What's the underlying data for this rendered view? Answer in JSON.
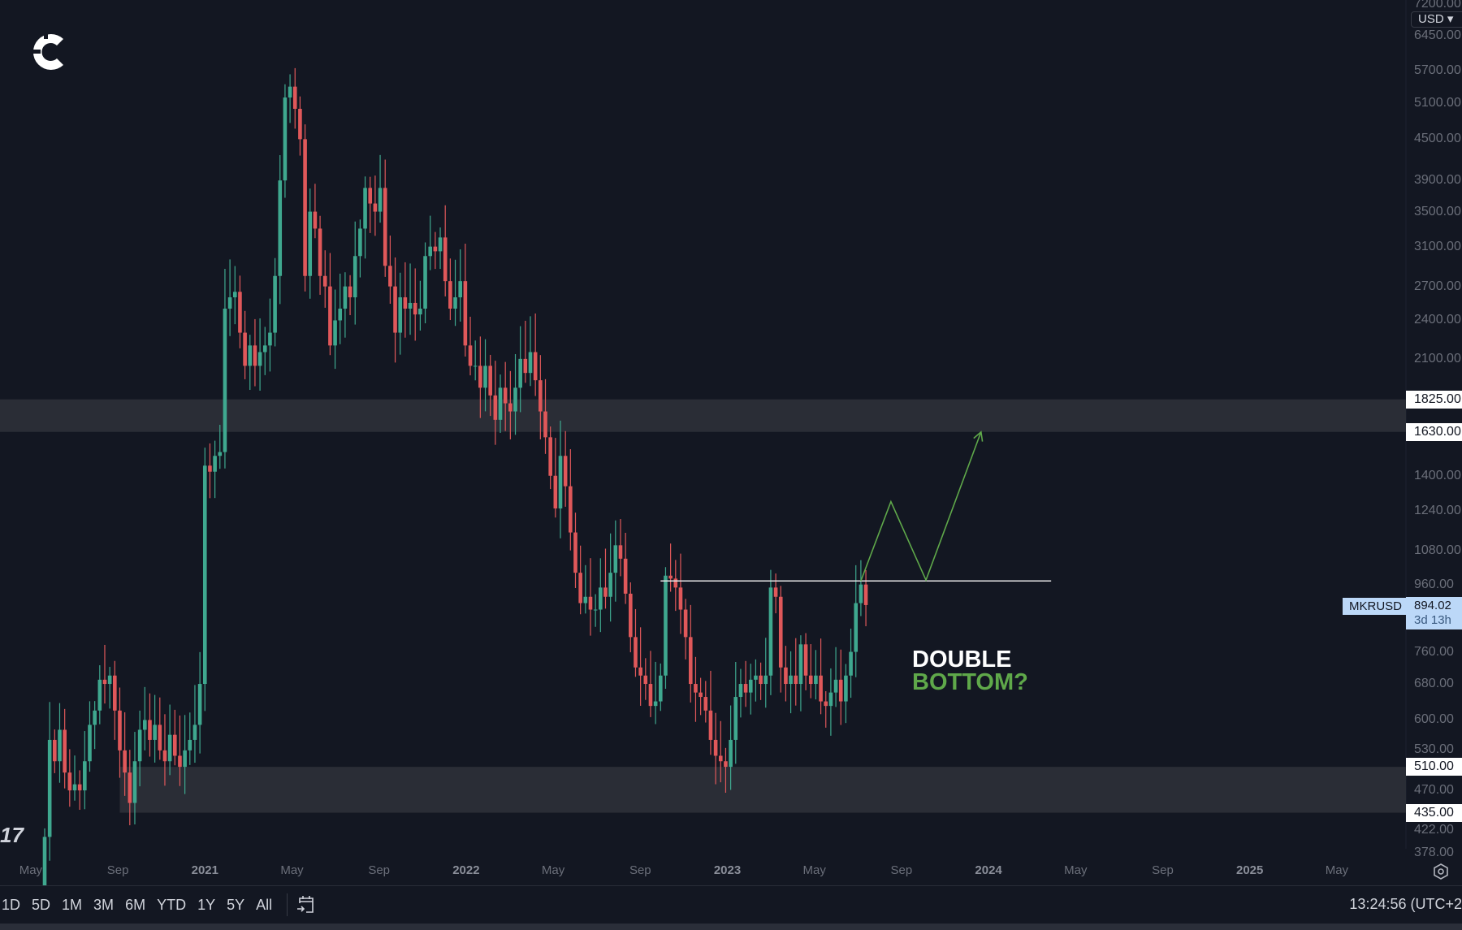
{
  "logo": {
    "name": "c-logo"
  },
  "currency_button": "USD",
  "symbol": "MKRUSD",
  "last_price": "894.02",
  "countdown": "3d 13h",
  "annotation": {
    "line1": "DOUBLE",
    "line2": "BOTTOM?"
  },
  "watermark": "17",
  "ranges": [
    "1D",
    "5D",
    "1M",
    "3M",
    "6M",
    "YTD",
    "1Y",
    "5Y",
    "All"
  ],
  "clock": "13:24:56 (UTC+2",
  "colors": {
    "background": "#131722",
    "up": "#3fa88f",
    "down": "#e0585a",
    "zone": "#2e3039",
    "projection": "#5fa84a",
    "annotation_accent": "#5fa84a",
    "price_label": "#bcd8f8"
  },
  "chart_data": {
    "type": "candlestick",
    "interval": "weekly",
    "scale": "log",
    "price_ticks": [
      "7200.00",
      "6450.00",
      "5700.00",
      "5100.00",
      "4500.00",
      "3900.00",
      "3500.00",
      "3100.00",
      "2700.00",
      "2400.00",
      "2100.00",
      "1400.00",
      "1240.00",
      "1080.00",
      "960.00",
      "760.00",
      "680.00",
      "600.00",
      "530.00",
      "470.00",
      "422.00",
      "378.00"
    ],
    "highlighted_levels": [
      "1825.00",
      "1630.00",
      "510.00",
      "435.00"
    ],
    "time_ticks": [
      {
        "label": "May",
        "month": "2020-05"
      },
      {
        "label": "Sep",
        "month": "2020-09"
      },
      {
        "label": "2021",
        "month": "2021-01",
        "year": true
      },
      {
        "label": "May",
        "month": "2021-05"
      },
      {
        "label": "Sep",
        "month": "2021-09"
      },
      {
        "label": "2022",
        "month": "2022-01",
        "year": true
      },
      {
        "label": "May",
        "month": "2022-05"
      },
      {
        "label": "Sep",
        "month": "2022-09"
      },
      {
        "label": "2023",
        "month": "2023-01",
        "year": true
      },
      {
        "label": "May",
        "month": "2023-05"
      },
      {
        "label": "Sep",
        "month": "2023-09"
      },
      {
        "label": "2024",
        "month": "2024-01",
        "year": true
      },
      {
        "label": "May",
        "month": "2024-05"
      },
      {
        "label": "Sep",
        "month": "2024-09"
      },
      {
        "label": "2025",
        "month": "2025-01",
        "year": true
      },
      {
        "label": "May",
        "month": "2025-05"
      }
    ],
    "first_candle": "2020-05-25",
    "closes": [
      400,
      560,
      520,
      580,
      500,
      470,
      480,
      470,
      520,
      590,
      620,
      690,
      680,
      700,
      620,
      540,
      500,
      450,
      520,
      580,
      600,
      560,
      590,
      540,
      520,
      570,
      530,
      510,
      540,
      560,
      590,
      680,
      1450,
      1420,
      1500,
      1520,
      2500,
      2600,
      2650,
      2300,
      2050,
      2200,
      2050,
      2150,
      2200,
      2300,
      2800,
      3900,
      5200,
      5400,
      5000,
      4500,
      2800,
      3500,
      3300,
      2800,
      2700,
      2200,
      2400,
      2500,
      2700,
      2600,
      3000,
      3300,
      3800,
      3600,
      3500,
      3800,
      2900,
      2700,
      2300,
      2600,
      2500,
      2550,
      2450,
      2500,
      3000,
      3100,
      3050,
      3200,
      2750,
      2500,
      2600,
      2750,
      2200,
      2050,
      2050,
      1900,
      2050,
      1850,
      1700,
      1900,
      1800,
      1750,
      1900,
      2100,
      2000,
      2150,
      1950,
      1750,
      1600,
      1400,
      1250,
      1500,
      1350,
      1150,
      1000,
      900,
      920,
      880,
      880,
      950,
      920,
      1000,
      1100,
      1050,
      930,
      800,
      720,
      700,
      680,
      630,
      640,
      700,
      990,
      980,
      950,
      880,
      800,
      680,
      660,
      650,
      620,
      560,
      530,
      520,
      510,
      560,
      650,
      680,
      660,
      690,
      700,
      680,
      700,
      950,
      920,
      720,
      680,
      700,
      680,
      780,
      700,
      680,
      700,
      640,
      630,
      660,
      690,
      640,
      700,
      760,
      900,
      960,
      894
    ],
    "first_open": 330,
    "zones": [
      {
        "from": 1630,
        "to": 1825,
        "start": "full"
      },
      {
        "from": 435,
        "to": 510,
        "start": "2020-09-07"
      }
    ],
    "neckline": {
      "price": 972,
      "from": "2022-10-03",
      "to": "2024-04-01"
    },
    "projection": [
      {
        "date": "2023-07-10",
        "price": 972
      },
      {
        "date": "2023-08-21",
        "price": 1280
      },
      {
        "date": "2023-10-09",
        "price": 975
      },
      {
        "date": "2023-12-25",
        "price": 1630
      }
    ]
  }
}
